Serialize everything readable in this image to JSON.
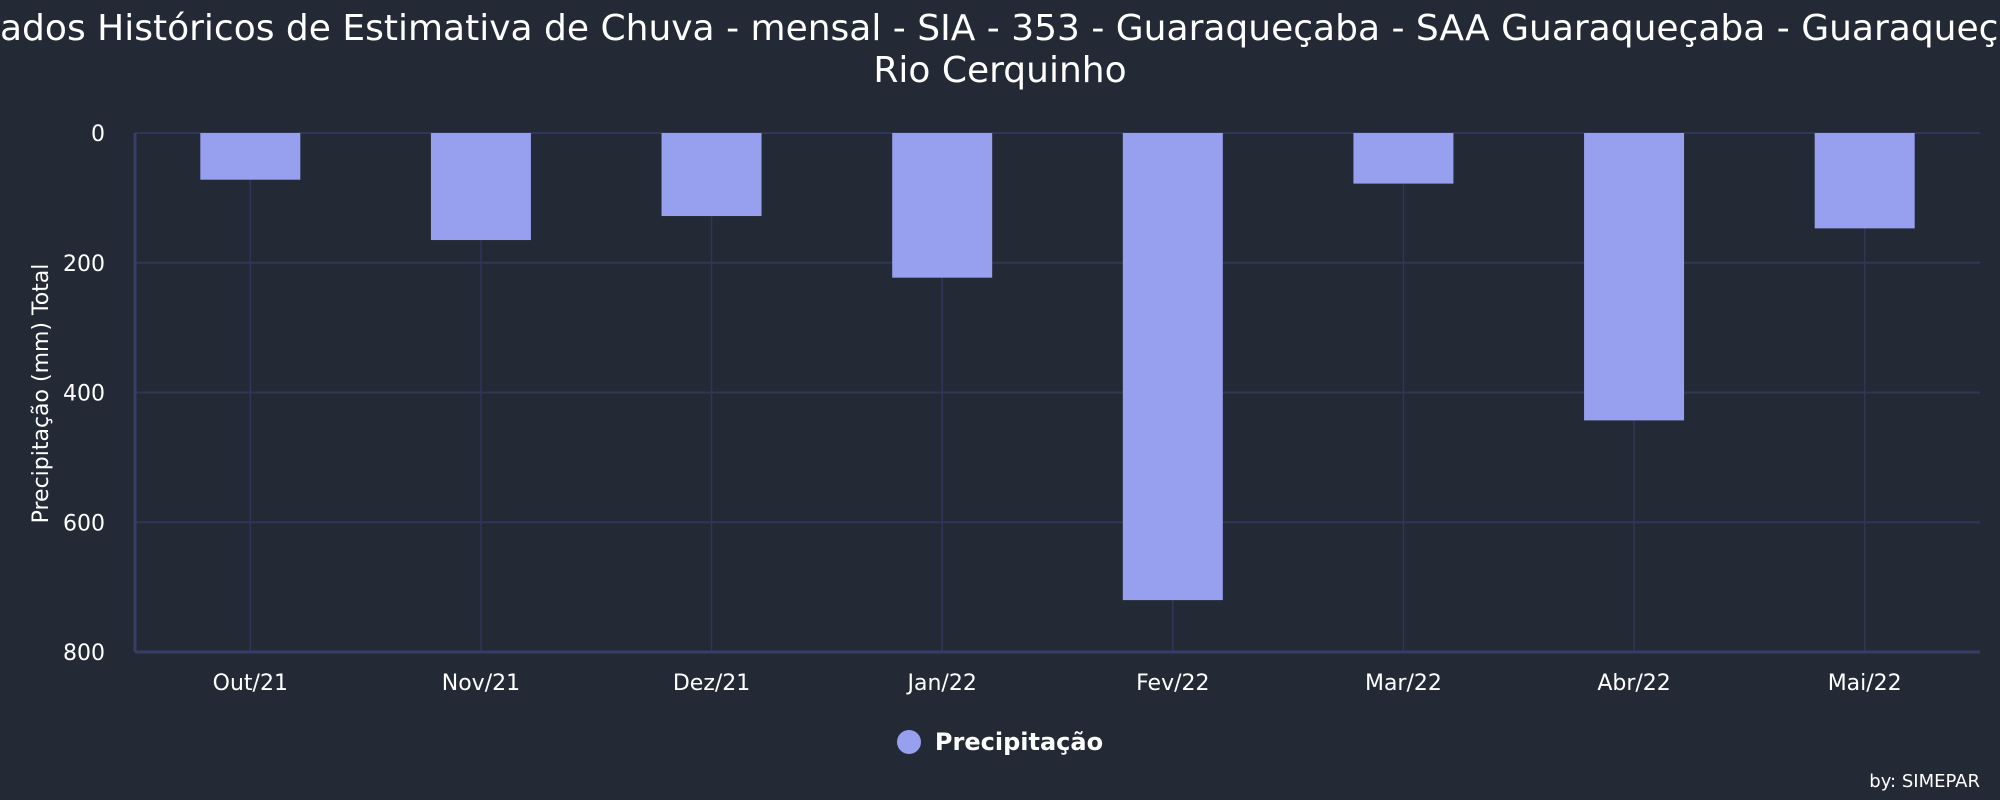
{
  "title_lines": [
    "ados Históricos de Estimativa de Chuva - mensal - SIA - 353 - Guaraqueçaba - SAA Guaraqueçaba - Guaraqueçaba",
    "Rio Cerquinho"
  ],
  "credits": "by: SIMEPAR",
  "colors": {
    "background": "#232a35",
    "bar": "#96a0ef",
    "grid": "#2f3658",
    "axis_line": "#363d68",
    "text": "#ffffff"
  },
  "chart_data": {
    "type": "bar",
    "categories": [
      "Out/21",
      "Nov/21",
      "Dez/21",
      "Jan/22",
      "Fev/22",
      "Mar/22",
      "Abr/22",
      "Mai/22"
    ],
    "series": [
      {
        "name": "Precipitação",
        "values": [
          72,
          165,
          128,
          223,
          720,
          78,
          443,
          147
        ]
      }
    ],
    "ylabel": "Precipitação (mm) Total",
    "xlabel": "",
    "ylim": [
      0,
      800
    ],
    "y_reversed": true,
    "y_ticks": [
      "0",
      "200",
      "400",
      "600",
      "800"
    ],
    "grid": true,
    "legend": "bottom-center"
  }
}
